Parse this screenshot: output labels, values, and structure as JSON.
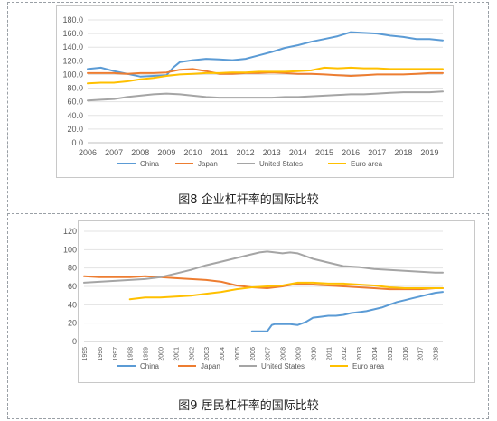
{
  "chart_data": [
    {
      "type": "line",
      "title": "",
      "caption": "图8   企业杠杆率的国际比较",
      "xlabel": "",
      "ylabel": "",
      "xlim": [
        2006.0,
        2019.5
      ],
      "ylim": [
        0,
        180
      ],
      "y_ticks": [
        0,
        20,
        40,
        60,
        80,
        100,
        120,
        140,
        160,
        180
      ],
      "y_tick_labels": [
        "0.0",
        "20.0",
        "40.0",
        "60.0",
        "80.0",
        "100.0",
        "120.0",
        "140.0",
        "160.0",
        "180.0"
      ],
      "x_ticks": [
        2006,
        2007,
        2008,
        2009,
        2010,
        2011,
        2012,
        2013,
        2014,
        2015,
        2016,
        2017,
        2018,
        2019
      ],
      "grid": "horizontal",
      "legend_position": "bottom",
      "series": [
        {
          "name": "China",
          "color": "#5b9bd5",
          "x": [
            2006,
            2006.5,
            2007,
            2007.5,
            2008,
            2008.5,
            2009,
            2009.25,
            2009.5,
            2010,
            2010.5,
            2011,
            2011.5,
            2012,
            2012.5,
            2013,
            2013.5,
            2014,
            2014.5,
            2015,
            2015.5,
            2016,
            2016.5,
            2017,
            2017.5,
            2018,
            2018.5,
            2019,
            2019.5
          ],
          "y": [
            108,
            110,
            105,
            101,
            97,
            98,
            99,
            110,
            118,
            121,
            123,
            122,
            121,
            123,
            128,
            133,
            139,
            143,
            148,
            152,
            156,
            162,
            161,
            160,
            157,
            155,
            152,
            152,
            150
          ]
        },
        {
          "name": "Japan",
          "color": "#ed7d31",
          "x": [
            2006,
            2006.5,
            2007,
            2007.5,
            2008,
            2008.5,
            2009,
            2009.5,
            2010,
            2010.5,
            2011,
            2011.5,
            2012,
            2012.5,
            2013,
            2013.5,
            2014,
            2014.5,
            2015,
            2015.5,
            2016,
            2016.5,
            2017,
            2017.5,
            2018,
            2018.5,
            2019,
            2019.5
          ],
          "y": [
            102,
            102,
            102,
            101,
            102,
            102,
            103,
            107,
            108,
            105,
            101,
            101,
            102,
            102,
            103,
            102,
            101,
            101,
            100,
            99,
            98,
            99,
            100,
            100,
            100,
            101,
            102,
            102
          ]
        },
        {
          "name": "United States",
          "color": "#a5a5a5",
          "x": [
            2006,
            2006.5,
            2007,
            2007.5,
            2008,
            2008.5,
            2009,
            2009.5,
            2010,
            2010.5,
            2011,
            2011.5,
            2012,
            2012.5,
            2013,
            2013.5,
            2014,
            2014.5,
            2015,
            2015.5,
            2016,
            2016.5,
            2017,
            2017.5,
            2018,
            2018.5,
            2019,
            2019.5
          ],
          "y": [
            62,
            63,
            64,
            67,
            69,
            71,
            72,
            71,
            69,
            67,
            66,
            66,
            66,
            66,
            66,
            67,
            67,
            68,
            69,
            70,
            71,
            71,
            72,
            73,
            74,
            74,
            74,
            75
          ]
        },
        {
          "name": "Euro area",
          "color": "#ffc000",
          "x": [
            2006,
            2006.5,
            2007,
            2007.5,
            2008,
            2008.5,
            2009,
            2009.5,
            2010,
            2010.5,
            2011,
            2011.5,
            2012,
            2012.5,
            2013,
            2013.5,
            2014,
            2014.5,
            2015,
            2015.5,
            2016,
            2016.5,
            2017,
            2017.5,
            2018,
            2018.5,
            2019,
            2019.5
          ],
          "y": [
            87,
            88,
            88,
            90,
            93,
            95,
            98,
            100,
            101,
            102,
            102,
            103,
            103,
            104,
            104,
            104,
            105,
            106,
            110,
            109,
            110,
            109,
            109,
            108,
            108,
            108,
            108,
            108
          ]
        }
      ]
    },
    {
      "type": "line",
      "title": "",
      "caption": "图9   居民杠杆率的国际比较",
      "xlabel": "",
      "ylabel": "",
      "xlim": [
        1995,
        2018.5
      ],
      "ylim": [
        0,
        120
      ],
      "y_ticks": [
        0,
        20,
        40,
        60,
        80,
        100,
        120
      ],
      "y_tick_labels": [
        "0",
        "20",
        "40",
        "60",
        "80",
        "100",
        "120"
      ],
      "x_ticks": [
        1995,
        1996,
        1997,
        1998,
        1999,
        2000,
        2001,
        2002,
        2003,
        2004,
        2005,
        2006,
        2007,
        2008,
        2009,
        2010,
        2011,
        2012,
        2013,
        2014,
        2015,
        2016,
        2017,
        2018
      ],
      "grid": "horizontal",
      "legend_position": "bottom",
      "series": [
        {
          "name": "China",
          "color": "#5b9bd5",
          "x": [
            2006,
            2006.5,
            2007,
            2007.3,
            2007.5,
            2008,
            2008.5,
            2009,
            2009.5,
            2010,
            2010.5,
            2011,
            2011.5,
            2012,
            2012.5,
            2013,
            2013.5,
            2014,
            2014.5,
            2015,
            2015.5,
            2016,
            2016.5,
            2017,
            2017.5,
            2018,
            2018.5
          ],
          "y": [
            11,
            11,
            11,
            18,
            19,
            19,
            19,
            18,
            21,
            26,
            27,
            28,
            28,
            29,
            31,
            32,
            33,
            35,
            37,
            40,
            43,
            45,
            47,
            49,
            51,
            53,
            54
          ]
        },
        {
          "name": "Japan",
          "color": "#ed7d31",
          "x": [
            1995,
            1996,
            1997,
            1998,
            1999,
            2000,
            2001,
            2002,
            2003,
            2004,
            2005,
            2006,
            2007,
            2008,
            2009,
            2010,
            2011,
            2012,
            2013,
            2014,
            2015,
            2016,
            2017,
            2018,
            2018.5
          ],
          "y": [
            71,
            70,
            70,
            70,
            71,
            70,
            69,
            68,
            67,
            65,
            61,
            59,
            58,
            60,
            63,
            62,
            61,
            60,
            59,
            58,
            57,
            57,
            57,
            58,
            58
          ]
        },
        {
          "name": "United States",
          "color": "#a5a5a5",
          "x": [
            1995,
            1996,
            1997,
            1998,
            1999,
            2000,
            2001,
            2002,
            2003,
            2004,
            2005,
            2006,
            2006.5,
            2007,
            2007.5,
            2008,
            2008.5,
            2009,
            2009.5,
            2010,
            2011,
            2012,
            2013,
            2014,
            2015,
            2016,
            2017,
            2018,
            2018.5
          ],
          "y": [
            64,
            65,
            66,
            67,
            68,
            70,
            74,
            78,
            83,
            87,
            91,
            95,
            97,
            98,
            97,
            96,
            97,
            96,
            93,
            90,
            86,
            82,
            81,
            79,
            78,
            77,
            76,
            75,
            75
          ]
        },
        {
          "name": "Euro area",
          "color": "#ffc000",
          "x": [
            1998,
            1999,
            2000,
            2001,
            2002,
            2003,
            2004,
            2005,
            2006,
            2007,
            2008,
            2009,
            2010,
            2011,
            2012,
            2013,
            2014,
            2015,
            2016,
            2017,
            2018,
            2018.5
          ],
          "y": [
            46,
            48,
            48,
            49,
            50,
            52,
            54,
            57,
            59,
            60,
            61,
            64,
            64,
            63,
            63,
            62,
            61,
            59,
            58,
            58,
            58,
            58
          ]
        }
      ]
    }
  ]
}
